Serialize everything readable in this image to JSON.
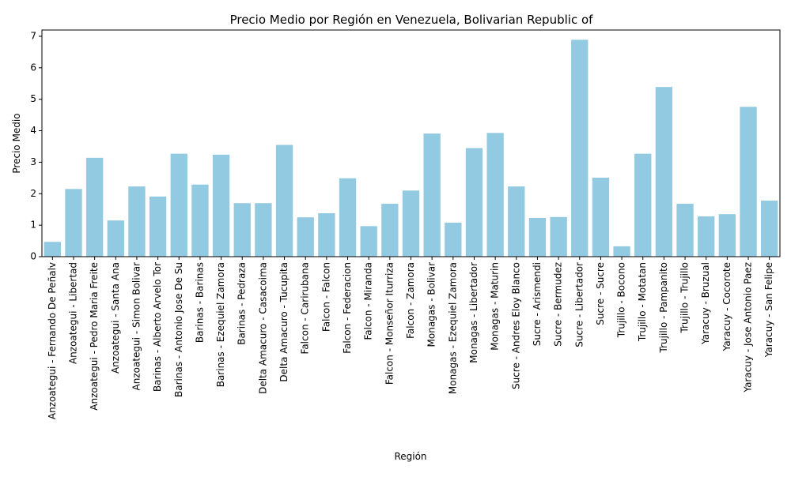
{
  "chart_data": {
    "type": "bar",
    "title": "Precio Medio por Región en Venezuela, Bolivarian Republic of",
    "xlabel": "Región",
    "ylabel": "Precio Medio",
    "ylim": [
      0,
      7.2
    ],
    "yticks": [
      0,
      1,
      2,
      3,
      4,
      5,
      6,
      7
    ],
    "grid": false,
    "bar_color": "#92CAE1",
    "categories": [
      "Anzoategui - Fernando De Peñalv",
      "Anzoategui - Libertad",
      "Anzoategui - Pedro Maria Freite",
      "Anzoategui - Santa Ana",
      "Anzoategui - Simon Bolivar",
      "Barinas - Alberto Arvelo Tor",
      "Barinas - Antonio Jose De Su",
      "Barinas - Barinas",
      "Barinas - Ezequiel Zamora",
      "Barinas - Pedraza",
      "Delta Amacuro - Casacoima",
      "Delta Amacuro - Tucupita",
      "Falcon - Carirubana",
      "Falcon - Falcon",
      "Falcon - Federacion",
      "Falcon - Miranda",
      "Falcon - Monseñor Iturriza",
      "Falcon - Zamora",
      "Monagas - Bolivar",
      "Monagas - Ezequiel Zamora",
      "Monagas - Libertador",
      "Monagas - Maturin",
      "Sucre - Andres Eloy Blanco",
      "Sucre - Arismendi",
      "Sucre - Bermudez",
      "Sucre - Libertador",
      "Sucre - Sucre",
      "Trujillo - Bocono",
      "Trujillo - Motatan",
      "Trujillo - Pampanito",
      "Trujillo - Trujillo",
      "Yaracuy - Bruzual",
      "Yaracuy - Cocorote",
      "Yaracuy - Jose Antonio Paez",
      "Yaracuy - San Felipe"
    ],
    "values": [
      0.47,
      2.15,
      3.14,
      1.15,
      2.23,
      1.91,
      3.27,
      2.29,
      3.24,
      1.7,
      1.7,
      3.55,
      1.25,
      1.38,
      2.49,
      0.97,
      1.68,
      2.1,
      3.91,
      1.08,
      3.45,
      3.93,
      2.23,
      1.23,
      1.26,
      6.89,
      2.51,
      0.33,
      3.27,
      5.39,
      1.68,
      1.28,
      1.35,
      4.76,
      1.78
    ]
  }
}
